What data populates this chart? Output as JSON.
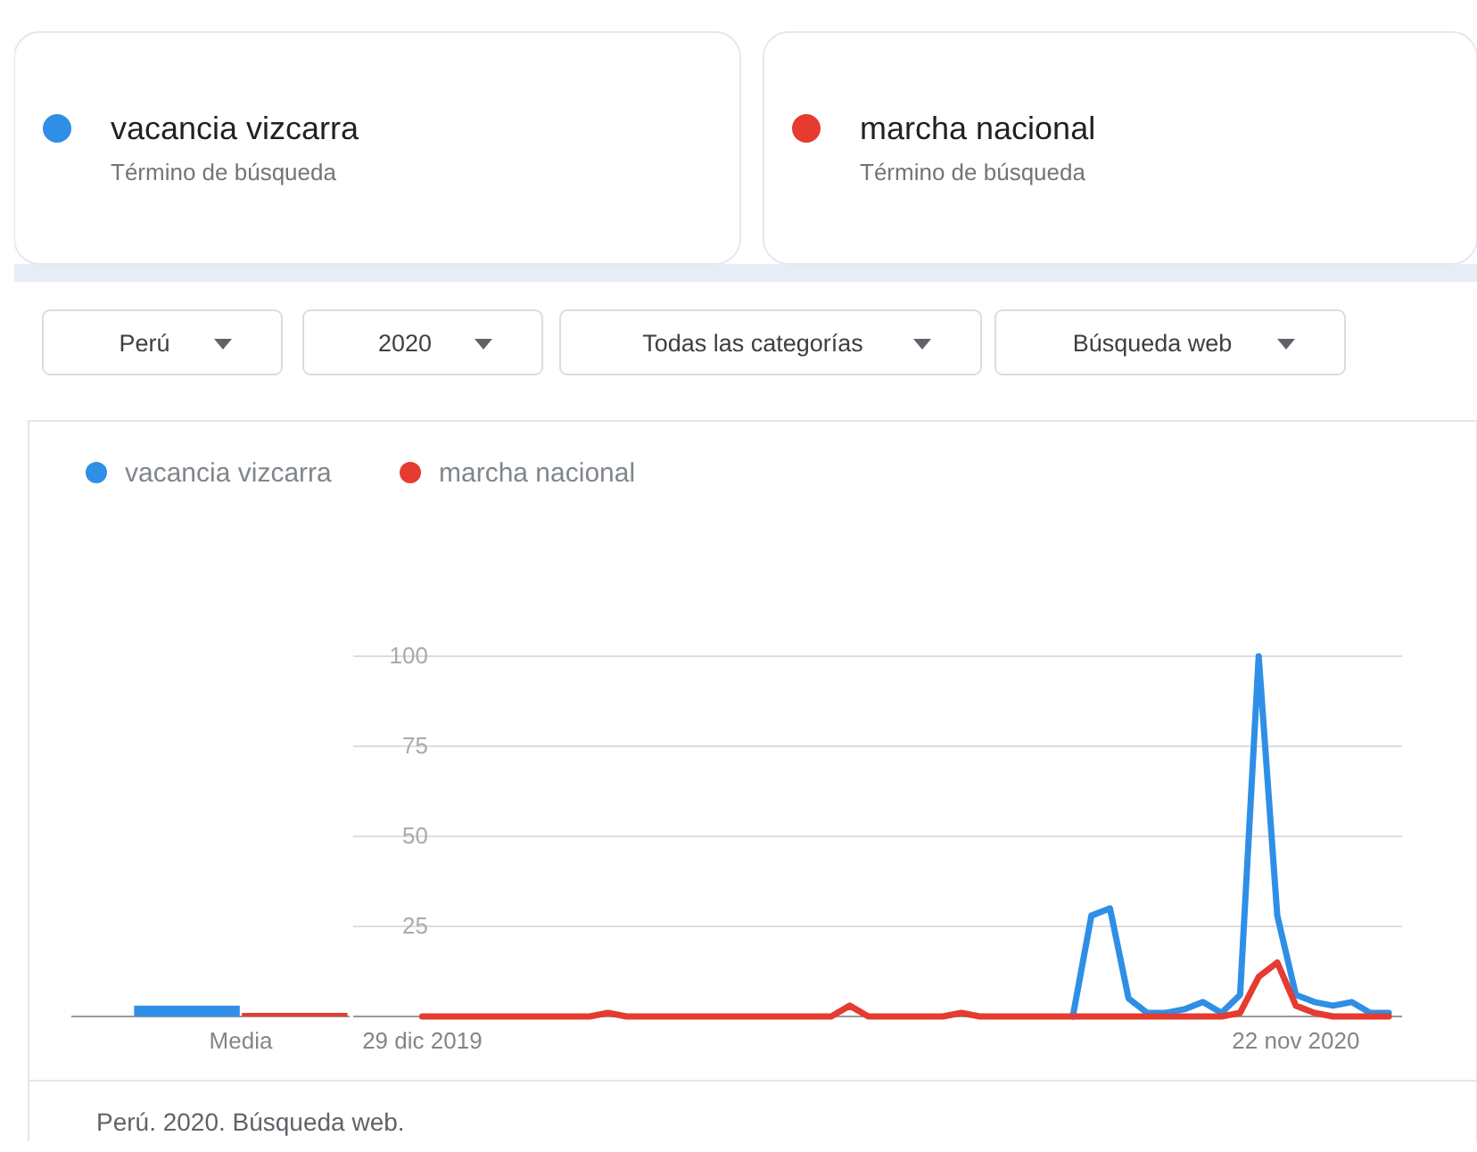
{
  "chart_data": [
    {
      "type": "other",
      "annotations": [
        "vacancia vizcarra",
        "Término de búsqueda",
        "marcha nacional",
        "Término de búsqueda",
        "Perú",
        "2020",
        "Todas las categorías",
        "Búsqueda web"
      ]
    },
    {
      "type": "bar",
      "categories": [
        "Media"
      ],
      "series": [
        {
          "color": "#2f8fe6",
          "values": [
            3
          ]
        },
        {
          "color": "#e53b30",
          "values": [
            1
          ]
        }
      ],
      "ylim": [
        0,
        100
      ],
      "tick_labels": "x"
    },
    {
      "type": "line",
      "x": [
        "2019-12-29",
        "2020-01-05",
        "2020-01-12",
        "2020-01-19",
        "2020-01-26",
        "2020-02-02",
        "2020-02-09",
        "2020-02-16",
        "2020-02-23",
        "2020-03-01",
        "2020-03-08",
        "2020-03-15",
        "2020-03-22",
        "2020-03-29",
        "2020-04-05",
        "2020-04-12",
        "2020-04-19",
        "2020-04-26",
        "2020-05-03",
        "2020-05-10",
        "2020-05-17",
        "2020-05-24",
        "2020-05-31",
        "2020-06-07",
        "2020-06-14",
        "2020-06-21",
        "2020-06-28",
        "2020-07-05",
        "2020-07-12",
        "2020-07-19",
        "2020-07-26",
        "2020-08-02",
        "2020-08-09",
        "2020-08-16",
        "2020-08-23",
        "2020-08-30",
        "2020-09-06",
        "2020-09-13",
        "2020-09-20",
        "2020-09-27",
        "2020-10-04",
        "2020-10-11",
        "2020-10-18",
        "2020-10-25",
        "2020-11-01",
        "2020-11-08",
        "2020-11-15",
        "2020-11-22",
        "2020-11-29",
        "2020-12-06",
        "2020-12-13",
        "2020-12-20",
        "2020-12-27"
      ],
      "series": [
        {
          "name": "vacancia vizcarra",
          "color": "#2f8fe6",
          "values": [
            null,
            null,
            null,
            null,
            null,
            null,
            null,
            null,
            null,
            null,
            null,
            null,
            null,
            null,
            null,
            null,
            null,
            null,
            null,
            null,
            null,
            null,
            null,
            null,
            null,
            null,
            null,
            null,
            null,
            null,
            null,
            null,
            null,
            null,
            null,
            0,
            28,
            30,
            5,
            1,
            1,
            2,
            4,
            1,
            6,
            100,
            28,
            6,
            4,
            3,
            4,
            1,
            1
          ]
        },
        {
          "name": "marcha nacional",
          "color": "#e53b30",
          "values": [
            0,
            0,
            0,
            0,
            0,
            0,
            0,
            0,
            0,
            0,
            1,
            0,
            0,
            0,
            0,
            0,
            0,
            0,
            0,
            0,
            0,
            0,
            0,
            3,
            0,
            0,
            0,
            0,
            0,
            1,
            0,
            0,
            0,
            0,
            0,
            0,
            0,
            0,
            0,
            0,
            0,
            0,
            0,
            0,
            1,
            11,
            15,
            3,
            1,
            0,
            0,
            0,
            0
          ]
        }
      ],
      "xlim": [
        "2019-12-03",
        "2021-01-01"
      ],
      "xticks": [
        {
          "value": "2019-12-29",
          "label": "29 dic 2019"
        },
        {
          "value": "2020-11-22",
          "label": "22 nov 2020"
        }
      ],
      "ylim": [
        0,
        100
      ],
      "yticks": [
        25,
        50,
        75,
        100
      ],
      "grid": "y",
      "legend": "top left",
      "line_style": "solid",
      "marker": "none",
      "annotations": [
        "Perú. 2020. Búsqueda web."
      ]
    }
  ]
}
